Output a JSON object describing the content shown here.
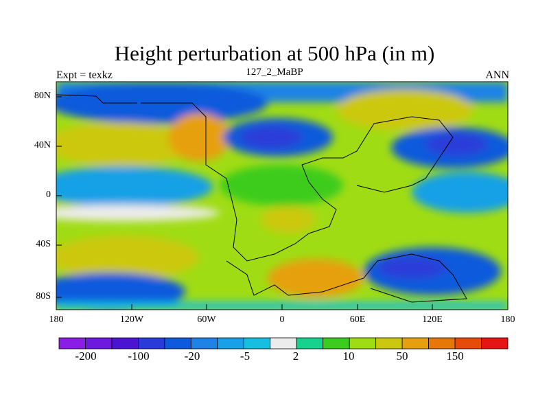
{
  "plot": {
    "title": "Height perturbation at 500 hPa (in m)",
    "left_string": "Expt = texkz",
    "center_string": "127_2_MaBP",
    "right_string": "ANN"
  },
  "axes": {
    "lat_labels": [
      "80N",
      "40N",
      "0",
      "40S",
      "80S"
    ],
    "lon_labels": [
      "180",
      "120W",
      "60W",
      "0",
      "60E",
      "120E",
      "180"
    ]
  },
  "colorbar": {
    "colors": [
      "#8a1ee6",
      "#6e19e0",
      "#4b14d2",
      "#2a3cd8",
      "#0f5adc",
      "#1e82e6",
      "#19a0e6",
      "#16bee0",
      "#ececec",
      "#16d28c",
      "#3ccc1e",
      "#a0dc14",
      "#ccc80f",
      "#e6a00f",
      "#e6780a",
      "#e64b0a",
      "#e61414"
    ],
    "labels": [
      "-200",
      "-100",
      "-20",
      "-5",
      "2",
      "10",
      "50",
      "150"
    ]
  },
  "chart_data": {
    "type": "filled-contour-map",
    "title": "Height perturbation at 500 hPa (in m)",
    "field": "500 hPa geopotential height perturbation",
    "units": "m",
    "experiment": "texkz",
    "period": "127_2_MaBP",
    "season": "ANN",
    "lon_range": [
      -180,
      180
    ],
    "lat_range": [
      -90,
      90
    ],
    "colorbar_labels": [
      -200,
      -100,
      -20,
      -5,
      2,
      10,
      50,
      150
    ],
    "regions": [
      {
        "lon": -150,
        "lat": 40,
        "value": 50
      },
      {
        "lon": -60,
        "lat": 45,
        "value": 150
      },
      {
        "lon": -10,
        "lat": 55,
        "value": -100
      },
      {
        "lon": 90,
        "lat": 60,
        "value": 50
      },
      {
        "lon": 125,
        "lat": 40,
        "value": -200
      },
      {
        "lon": -120,
        "lat": 5,
        "value": -20
      },
      {
        "lon": 0,
        "lat": 5,
        "value": 10
      },
      {
        "lon": 150,
        "lat": 5,
        "value": -20
      },
      {
        "lon": -140,
        "lat": -50,
        "value": 50
      },
      {
        "lon": 30,
        "lat": -60,
        "value": 150
      },
      {
        "lon": 120,
        "lat": -55,
        "value": -100
      },
      {
        "lon": -160,
        "lat": -80,
        "value": -20
      }
    ]
  }
}
